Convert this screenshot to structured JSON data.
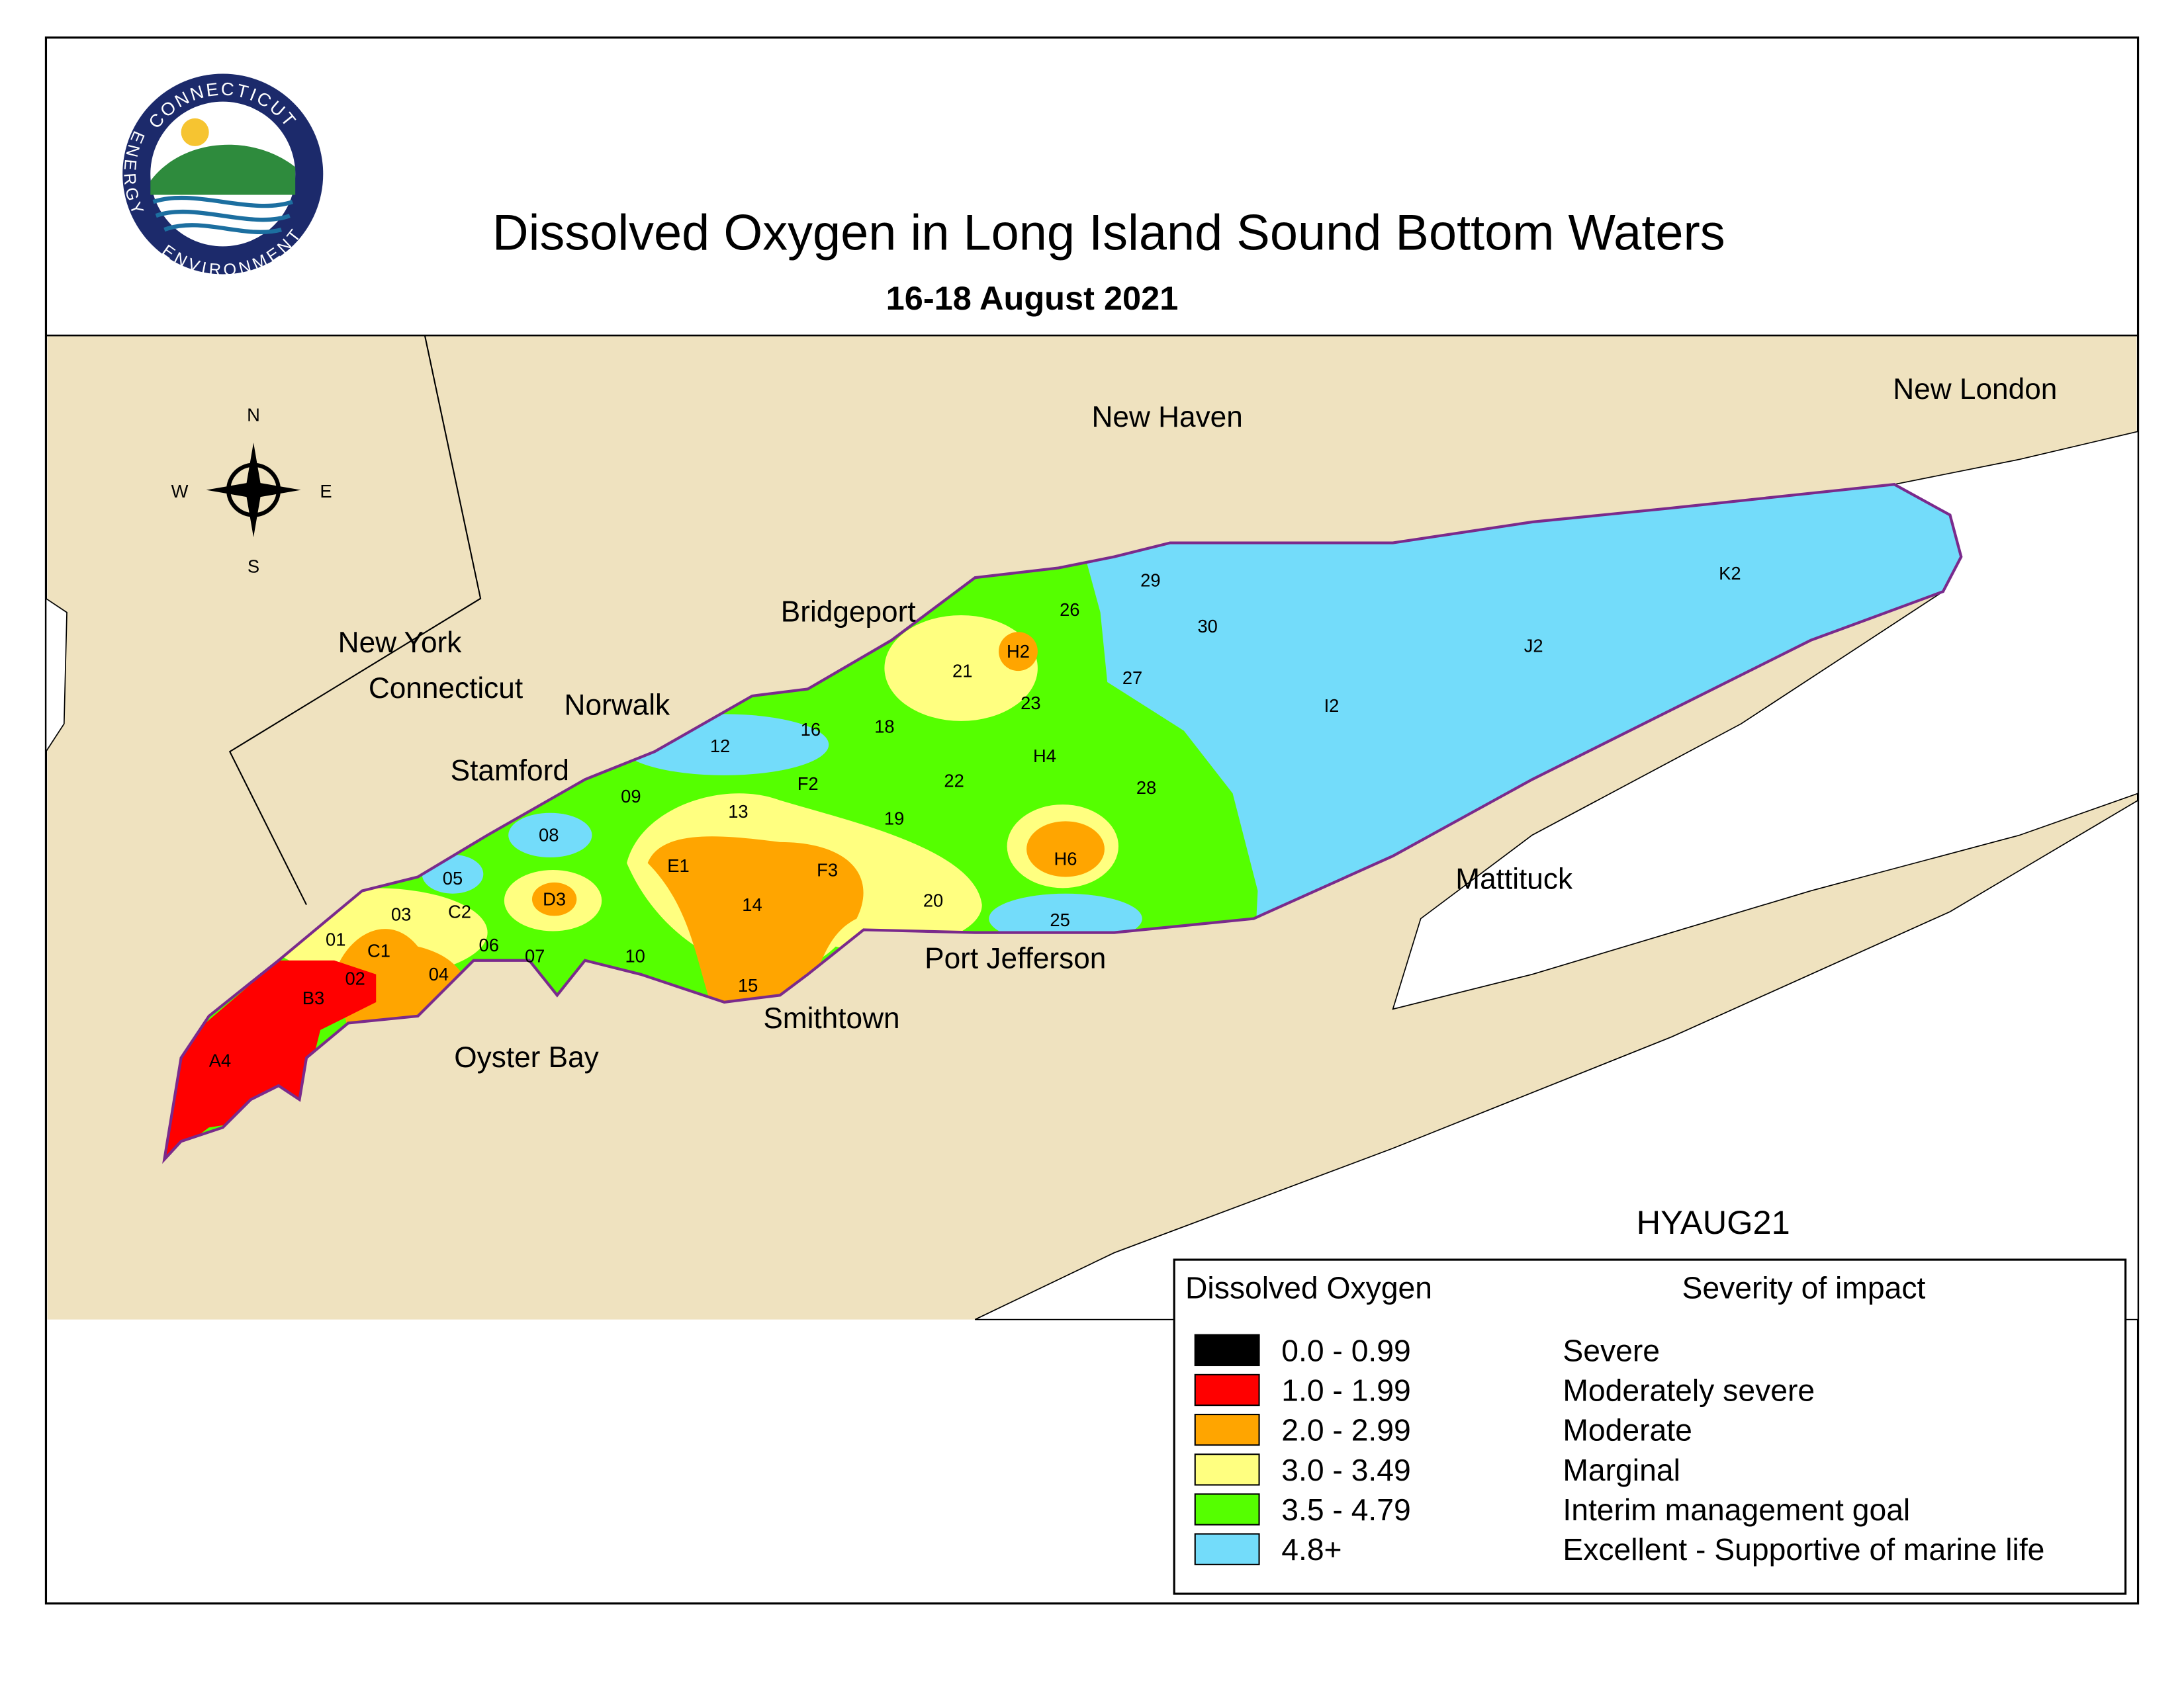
{
  "logo": {
    "top": "CONNECTICUT",
    "left": "ENERGY",
    "bottom": "ENVIRONMENT"
  },
  "header": {
    "title": "Dissolved Oxygen in Long Island Sound Bottom Waters",
    "subtitle": "16-18 August 2021"
  },
  "map": {
    "compass": {
      "n": "N",
      "e": "E",
      "s": "S",
      "w": "W"
    },
    "places": [
      "New Haven",
      "New London",
      "Bridgeport",
      "New York",
      "Connecticut",
      "Norwalk",
      "Stamford",
      "Mattituck",
      "Port Jefferson",
      "Smithtown",
      "Oyster Bay"
    ],
    "stations": [
      "A4",
      "B3",
      "02",
      "01",
      "C1",
      "03",
      "04",
      "C2",
      "05",
      "06",
      "07",
      "D3",
      "08",
      "09",
      "10",
      "12",
      "16",
      "18",
      "F2",
      "13",
      "E1",
      "14",
      "F3",
      "15",
      "19",
      "20",
      "22",
      "21",
      "H2",
      "23",
      "H4",
      "26",
      "29",
      "30",
      "27",
      "28",
      "H6",
      "25",
      "I2",
      "J2",
      "K2"
    ],
    "map_id": "HYAUG21"
  },
  "legend": {
    "title": "Dissolved Oxygen",
    "subtitle": "Severity of impact",
    "rows": [
      {
        "range": "0.0 - 0.99",
        "impact": "Severe",
        "color": "#000000"
      },
      {
        "range": "1.0 - 1.99",
        "impact": "Moderately severe",
        "color": "#ff0000"
      },
      {
        "range": "2.0 - 2.99",
        "impact": "Moderate",
        "color": "#ffa500"
      },
      {
        "range": "3.0 - 3.49",
        "impact": "Marginal",
        "color": "#ffff80"
      },
      {
        "range": "3.5 - 4.79",
        "impact": "Interim management goal",
        "color": "#55ff00"
      },
      {
        "range": "4.8+",
        "impact": "Excellent - Supportive of marine life",
        "color": "#73dcfa"
      }
    ]
  }
}
